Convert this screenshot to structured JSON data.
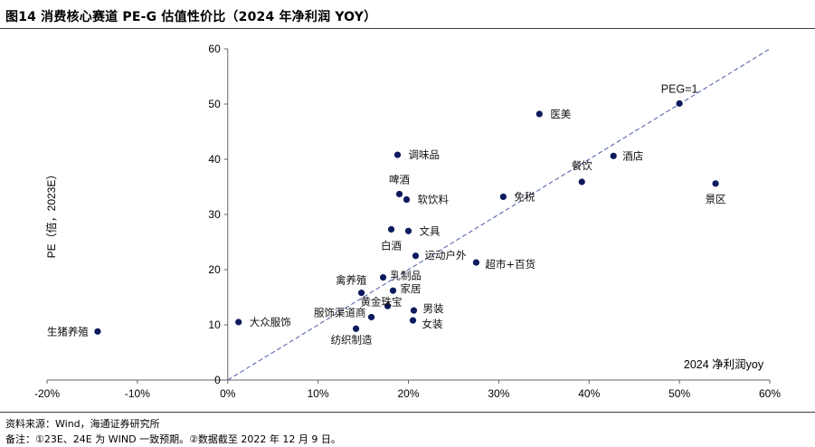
{
  "figure": {
    "title": "图14 消费核心赛道 PE-G 估值性价比（2024 年净利润 YOY）",
    "source_note": "资料来源：Wind，海通证券研究所",
    "remark_note": "备注：①23E、24E 为 WIND 一致预期。②数据截至 2022 年 12 月 9 日。"
  },
  "chart_data": {
    "type": "scatter",
    "xlabel": "2024 净利润yoy",
    "ylabel": "PE（倍，2023E）",
    "xlim": [
      -0.2,
      0.6
    ],
    "ylim": [
      0,
      60
    ],
    "x_ticks": [
      -0.2,
      -0.1,
      0,
      0.1,
      0.2,
      0.3,
      0.4,
      0.5,
      0.6
    ],
    "x_tick_labels": [
      "-20%",
      "-10%",
      "0%",
      "10%",
      "20%",
      "30%",
      "40%",
      "50%",
      "60%"
    ],
    "y_ticks": [
      0,
      10,
      20,
      30,
      40,
      50,
      60
    ],
    "y_tick_labels": [
      "0",
      "10",
      "20",
      "30",
      "40",
      "50",
      "60"
    ],
    "reference_line": {
      "label": "PEG=1",
      "from": [
        0,
        0
      ],
      "to": [
        0.6,
        60
      ]
    },
    "colors": {
      "point": "#0d1a5e",
      "reference_line": "#4a5aa8",
      "axis": "#666666"
    },
    "points": [
      {
        "name": "生猪养殖",
        "x": -0.144,
        "y": 8.8
      },
      {
        "name": "大众服饰",
        "x": 0.012,
        "y": 10.5
      },
      {
        "name": "纺织制造",
        "x": 0.142,
        "y": 9.3
      },
      {
        "name": "服饰渠道商",
        "x": 0.159,
        "y": 11.4
      },
      {
        "name": "黄金珠宝",
        "x": 0.177,
        "y": 13.4
      },
      {
        "name": "禽养殖",
        "x": 0.148,
        "y": 15.8
      },
      {
        "name": "家居",
        "x": 0.183,
        "y": 16.2
      },
      {
        "name": "乳制品",
        "x": 0.172,
        "y": 18.6
      },
      {
        "name": "男装",
        "x": 0.206,
        "y": 12.6
      },
      {
        "name": "女装",
        "x": 0.205,
        "y": 10.8
      },
      {
        "name": "运动户外",
        "x": 0.208,
        "y": 22.5
      },
      {
        "name": "超市+百货",
        "x": 0.275,
        "y": 21.3
      },
      {
        "name": "白酒",
        "x": 0.181,
        "y": 27.3
      },
      {
        "name": "文具",
        "x": 0.2,
        "y": 27.0
      },
      {
        "name": "软饮料",
        "x": 0.198,
        "y": 32.7
      },
      {
        "name": "啤酒",
        "x": 0.19,
        "y": 33.7
      },
      {
        "name": "调味品",
        "x": 0.188,
        "y": 40.8
      },
      {
        "name": "免税",
        "x": 0.305,
        "y": 33.2
      },
      {
        "name": "餐饮",
        "x": 0.392,
        "y": 35.9
      },
      {
        "name": "酒店",
        "x": 0.427,
        "y": 40.6
      },
      {
        "name": "医美",
        "x": 0.345,
        "y": 48.2
      },
      {
        "name": "PEG=1",
        "x": 0.5,
        "y": 50.1
      },
      {
        "name": "景区",
        "x": 0.54,
        "y": 35.6
      }
    ]
  }
}
